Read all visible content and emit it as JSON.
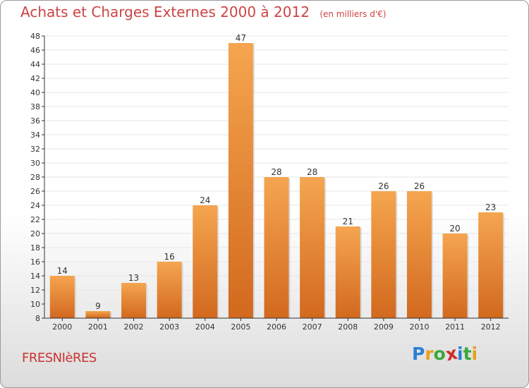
{
  "header": {
    "title": "Achats et Charges Externes 2000 à 2012",
    "subtitle": "(en milliers d'€)"
  },
  "footer": {
    "location": "FRESNIèRES",
    "brand_letters": [
      "P",
      "r",
      "o",
      "x",
      "i",
      "t",
      "i"
    ],
    "brand_colors": [
      "#2b7fd4",
      "#e8a020",
      "#3aa83a",
      "#d42b2b",
      "#2b7fd4",
      "#3aa83a",
      "#e8a020"
    ]
  },
  "chart_data": {
    "type": "bar",
    "title": "Achats et Charges Externes 2000 à 2012",
    "subtitle": "(en milliers d'€)",
    "xlabel": "",
    "ylabel": "",
    "categories": [
      "2000",
      "2001",
      "2002",
      "2003",
      "2004",
      "2005",
      "2006",
      "2007",
      "2008",
      "2009",
      "2010",
      "2011",
      "2012"
    ],
    "values": [
      14,
      9,
      13,
      16,
      24,
      47,
      28,
      28,
      21,
      26,
      26,
      20,
      23
    ],
    "ylim": [
      8,
      48
    ],
    "yticks": [
      8,
      10,
      12,
      14,
      16,
      18,
      20,
      22,
      24,
      26,
      28,
      30,
      32,
      34,
      36,
      38,
      40,
      42,
      44,
      46,
      48
    ],
    "grid": true,
    "colors": {
      "bar_light": "#f5a550",
      "bar_dark": "#d2691e",
      "grid": "#e6e6e6",
      "axis": "#333333",
      "text": "#333333"
    }
  }
}
